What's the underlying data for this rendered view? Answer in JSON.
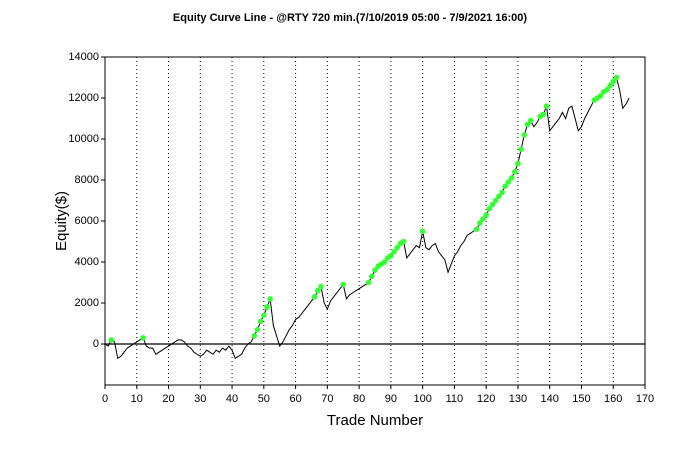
{
  "chart_data": {
    "type": "line",
    "title": "Equity Curve Line - @RTY 720 min.(7/10/2019 05:00 - 7/9/2021 16:00)",
    "xlabel": "Trade Number",
    "ylabel": "Equity($)",
    "xlim": [
      0,
      170
    ],
    "xticks": [
      0,
      10,
      20,
      30,
      40,
      50,
      60,
      70,
      80,
      90,
      100,
      110,
      120,
      130,
      140,
      150,
      160,
      170
    ],
    "ylim": [
      -2000,
      14000
    ],
    "yticks": [
      0,
      2000,
      4000,
      6000,
      8000,
      10000,
      12000,
      14000
    ],
    "grid": true,
    "line_color": "#000000",
    "marker_color": "#33ff33",
    "x": [
      0,
      1,
      2,
      3,
      4,
      5,
      6,
      7,
      8,
      9,
      10,
      11,
      12,
      13,
      14,
      15,
      16,
      17,
      18,
      19,
      20,
      21,
      22,
      23,
      24,
      25,
      26,
      27,
      28,
      29,
      30,
      31,
      32,
      33,
      34,
      35,
      36,
      37,
      38,
      39,
      40,
      41,
      42,
      43,
      44,
      45,
      46,
      47,
      48,
      49,
      50,
      51,
      52,
      53,
      54,
      55,
      56,
      57,
      58,
      59,
      60,
      61,
      62,
      63,
      64,
      65,
      66,
      67,
      68,
      69,
      70,
      71,
      72,
      73,
      74,
      75,
      76,
      77,
      78,
      79,
      80,
      81,
      82,
      83,
      84,
      85,
      86,
      87,
      88,
      89,
      90,
      91,
      92,
      93,
      94,
      95,
      96,
      97,
      98,
      99,
      100,
      101,
      102,
      103,
      104,
      105,
      106,
      107,
      108,
      109,
      110,
      111,
      112,
      113,
      114,
      115,
      116,
      117,
      118,
      119,
      120,
      121,
      122,
      123,
      124,
      125,
      126,
      127,
      128,
      129,
      130,
      131,
      132,
      133,
      134,
      135,
      136,
      137,
      138,
      139,
      140,
      141,
      142,
      143,
      144,
      145,
      146,
      147,
      148,
      149,
      150,
      151,
      152,
      153,
      154,
      155,
      156,
      157,
      158,
      159,
      160,
      161,
      162,
      163,
      164,
      165
    ],
    "values": [
      0,
      -100,
      200,
      100,
      -700,
      -600,
      -400,
      -200,
      -100,
      0,
      100,
      200,
      300,
      -100,
      -200,
      -200,
      -500,
      -400,
      -300,
      -200,
      -100,
      0,
      100,
      200,
      200,
      100,
      -100,
      -200,
      -400,
      -500,
      -600,
      -500,
      -300,
      -400,
      -500,
      -300,
      -400,
      -200,
      -300,
      -100,
      -300,
      -700,
      -600,
      -500,
      -200,
      0,
      100,
      400,
      700,
      1100,
      1400,
      1800,
      2200,
      900,
      400,
      -100,
      100,
      400,
      700,
      900,
      1200,
      1300,
      1500,
      1700,
      1900,
      2100,
      2300,
      2600,
      2800,
      2000,
      1700,
      2100,
      2300,
      2500,
      2700,
      2900,
      2200,
      2400,
      2500,
      2600,
      2700,
      2800,
      2900,
      3000,
      3300,
      3600,
      3800,
      3900,
      4000,
      4200,
      4300,
      4500,
      4700,
      4900,
      5000,
      4200,
      4400,
      4600,
      4800,
      4700,
      5500,
      4700,
      4600,
      4800,
      4900,
      4500,
      4300,
      4100,
      3500,
      3900,
      4300,
      4500,
      4800,
      5000,
      5300,
      5400,
      5500,
      5600,
      5900,
      6100,
      6300,
      6600,
      6800,
      7000,
      7200,
      7400,
      7700,
      7900,
      8100,
      8400,
      8800,
      9500,
      10200,
      10700,
      10900,
      10600,
      10800,
      11100,
      11200,
      11600,
      10400,
      10600,
      10800,
      11000,
      11300,
      11000,
      11500,
      11600,
      11000,
      10400,
      10600,
      11000,
      11300,
      11600,
      11900,
      12000,
      12100,
      12300,
      12400,
      12600,
      12800,
      13000,
      12400,
      11500,
      11700,
      12000
    ]
  }
}
